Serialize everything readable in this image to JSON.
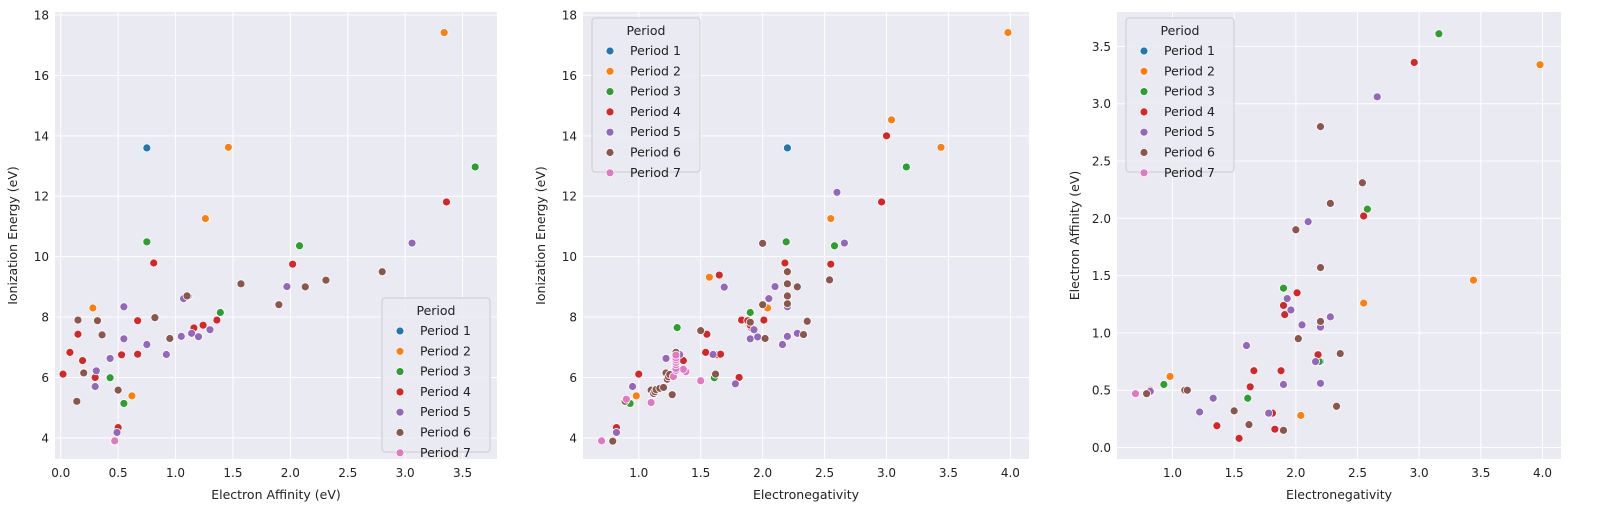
{
  "colors": {
    "background": "#ffffff",
    "axes_face": "#eaeaf2",
    "grid": "#ffffff",
    "legend_face": "#eaeaf2",
    "legend_edge": "#cccccc",
    "period_colors": [
      "#1f77b4",
      "#ff7f0e",
      "#2ca02c",
      "#d62728",
      "#9467bd",
      "#8c564b",
      "#e377c2"
    ]
  },
  "chart_data": [
    {
      "type": "scatter",
      "xlabel": "Electron Affinity (eV)",
      "ylabel": "Ionization Energy (eV)",
      "xlim": [
        -0.05,
        3.8
      ],
      "ylim": [
        3.3,
        18.1
      ],
      "xticks": [
        "0.0",
        "0.5",
        "1.0",
        "1.5",
        "2.0",
        "2.5",
        "3.0",
        "3.5"
      ],
      "yticks": [
        "4",
        "6",
        "8",
        "10",
        "12",
        "14",
        "16",
        "18"
      ],
      "grid": true,
      "legend_title": "Period",
      "legend_position": "lower right",
      "series": [
        {
          "name": "Period 1",
          "points": [
            [
              0.75,
              13.6
            ]
          ]
        },
        {
          "name": "Period 2",
          "points": [
            [
              0.62,
              5.39
            ],
            [
              0.28,
              8.3
            ],
            [
              1.26,
              11.26
            ],
            [
              1.46,
              13.62
            ],
            [
              3.34,
              17.42
            ]
          ]
        },
        {
          "name": "Period 3",
          "points": [
            [
              0.55,
              5.14
            ],
            [
              0.43,
              5.99
            ],
            [
              0.75,
              10.49
            ],
            [
              2.08,
              10.36
            ],
            [
              3.61,
              12.97
            ],
            [
              1.39,
              8.15
            ]
          ]
        },
        {
          "name": "Period 4",
          "points": [
            [
              0.5,
              4.34
            ],
            [
              0.02,
              6.11
            ],
            [
              0.19,
              6.56
            ],
            [
              0.08,
              6.83
            ],
            [
              0.53,
              6.75
            ],
            [
              0.67,
              6.77
            ],
            [
              0.15,
              7.43
            ],
            [
              1.16,
              7.64
            ],
            [
              1.24,
              7.73
            ],
            [
              0.3,
              6.0
            ],
            [
              1.36,
              7.9
            ],
            [
              0.81,
              9.79
            ],
            [
              2.02,
              9.75
            ],
            [
              3.36,
              11.81
            ],
            [
              0.67,
              7.88
            ],
            [
              0.3,
              6.0
            ]
          ]
        },
        {
          "name": "Period 5",
          "points": [
            [
              0.49,
              4.18
            ],
            [
              0.3,
              5.7
            ],
            [
              0.31,
              6.22
            ],
            [
              0.43,
              6.63
            ],
            [
              0.92,
              6.76
            ],
            [
              0.75,
              7.09
            ],
            [
              0.55,
              7.28
            ],
            [
              1.05,
              7.36
            ],
            [
              1.14,
              7.46
            ],
            [
              1.2,
              7.35
            ],
            [
              1.3,
              7.58
            ],
            [
              1.07,
              8.61
            ],
            [
              1.11,
              8.69
            ],
            [
              0.55,
              8.34
            ],
            [
              1.97,
              9.01
            ],
            [
              3.06,
              10.45
            ]
          ]
        },
        {
          "name": "Period 6",
          "points": [
            [
              0.47,
              3.89
            ],
            [
              0.14,
              5.21
            ],
            [
              0.2,
              6.15
            ],
            [
              0.5,
              5.58
            ],
            [
              0.32,
              7.88
            ],
            [
              0.36,
              7.41
            ],
            [
              0.82,
              7.98
            ],
            [
              0.95,
              7.29
            ],
            [
              1.57,
              9.1
            ],
            [
              1.9,
              8.41
            ],
            [
              2.13,
              9.0
            ],
            [
              2.31,
              9.22
            ],
            [
              2.8,
              9.5
            ],
            [
              1.1,
              8.7
            ],
            [
              0.15,
              7.9
            ]
          ]
        },
        {
          "name": "Period 7",
          "points": [
            [
              0.47,
              3.9
            ]
          ]
        }
      ]
    },
    {
      "type": "scatter",
      "xlabel": "Electronegativity",
      "ylabel": "Ionization Energy (eV)",
      "xlim": [
        0.55,
        4.15
      ],
      "ylim": [
        3.3,
        18.1
      ],
      "xticks": [
        "1.0",
        "1.5",
        "2.0",
        "2.5",
        "3.0",
        "3.5",
        "4.0"
      ],
      "yticks": [
        "4",
        "6",
        "8",
        "10",
        "12",
        "14",
        "16",
        "18"
      ],
      "grid": true,
      "legend_title": "Period",
      "legend_position": "upper left",
      "series": [
        {
          "name": "Period 1",
          "points": [
            [
              2.2,
              13.6
            ]
          ]
        },
        {
          "name": "Period 2",
          "points": [
            [
              0.98,
              5.39
            ],
            [
              1.57,
              9.32
            ],
            [
              2.04,
              8.3
            ],
            [
              2.55,
              11.26
            ],
            [
              3.04,
              14.53
            ],
            [
              3.44,
              13.62
            ],
            [
              3.98,
              17.42
            ]
          ]
        },
        {
          "name": "Period 3",
          "points": [
            [
              0.93,
              5.14
            ],
            [
              1.31,
              7.65
            ],
            [
              1.61,
              5.99
            ],
            [
              1.9,
              8.15
            ],
            [
              2.19,
              10.49
            ],
            [
              2.58,
              10.36
            ],
            [
              3.16,
              12.97
            ]
          ]
        },
        {
          "name": "Period 4",
          "points": [
            [
              0.82,
              4.34
            ],
            [
              1.0,
              6.11
            ],
            [
              1.36,
              6.56
            ],
            [
              1.54,
              6.83
            ],
            [
              1.63,
              6.75
            ],
            [
              1.66,
              6.77
            ],
            [
              1.55,
              7.43
            ],
            [
              1.83,
              7.9
            ],
            [
              1.88,
              7.88
            ],
            [
              1.91,
              7.64
            ],
            [
              1.9,
              7.73
            ],
            [
              1.65,
              9.39
            ],
            [
              1.81,
              6.0
            ],
            [
              2.01,
              7.9
            ],
            [
              2.18,
              9.79
            ],
            [
              2.55,
              9.75
            ],
            [
              2.96,
              11.81
            ],
            [
              3.0,
              14.0
            ]
          ]
        },
        {
          "name": "Period 5",
          "points": [
            [
              0.82,
              4.18
            ],
            [
              0.95,
              5.7
            ],
            [
              1.22,
              6.63
            ],
            [
              1.33,
              6.76
            ],
            [
              1.6,
              6.76
            ],
            [
              2.16,
              7.09
            ],
            [
              1.9,
              7.28
            ],
            [
              2.2,
              7.36
            ],
            [
              2.28,
              7.46
            ],
            [
              2.2,
              8.34
            ],
            [
              1.93,
              7.58
            ],
            [
              1.69,
              8.99
            ],
            [
              1.78,
              5.79
            ],
            [
              1.96,
              7.34
            ],
            [
              2.05,
              8.61
            ],
            [
              2.1,
              9.01
            ],
            [
              2.66,
              10.45
            ],
            [
              2.6,
              12.13
            ]
          ]
        },
        {
          "name": "Period 6",
          "points": [
            [
              0.79,
              3.89
            ],
            [
              0.89,
              5.21
            ],
            [
              1.1,
              5.58
            ],
            [
              1.12,
              5.47
            ],
            [
              1.13,
              5.53
            ],
            [
              1.14,
              5.6
            ],
            [
              1.17,
              5.64
            ],
            [
              1.2,
              5.67
            ],
            [
              1.22,
              6.15
            ],
            [
              1.23,
              5.94
            ],
            [
              1.24,
              6.02
            ],
            [
              1.25,
              6.1
            ],
            [
              1.27,
              5.43
            ],
            [
              1.3,
              6.83
            ],
            [
              1.5,
              7.55
            ],
            [
              2.36,
              7.86
            ],
            [
              1.9,
              7.83
            ],
            [
              2.2,
              8.44
            ],
            [
              2.28,
              9.0
            ],
            [
              2.54,
              9.23
            ],
            [
              2.0,
              10.44
            ],
            [
              1.62,
              6.11
            ],
            [
              2.33,
              7.42
            ],
            [
              2.02,
              7.29
            ],
            [
              2.0,
              8.41
            ],
            [
              2.2,
              9.5
            ],
            [
              2.2,
              9.1
            ],
            [
              2.2,
              8.7
            ]
          ]
        },
        {
          "name": "Period 7",
          "points": [
            [
              0.7,
              3.9
            ],
            [
              0.9,
              5.28
            ],
            [
              1.1,
              5.17
            ],
            [
              1.3,
              6.31
            ],
            [
              1.5,
              5.89
            ],
            [
              1.38,
              6.19
            ],
            [
              1.36,
              6.27
            ],
            [
              1.28,
              6.03
            ],
            [
              1.3,
              6.23
            ],
            [
              1.3,
              6.3
            ],
            [
              1.3,
              6.42
            ],
            [
              1.3,
              6.5
            ],
            [
              1.3,
              6.58
            ],
            [
              1.3,
              6.65
            ],
            [
              1.3,
              6.74
            ]
          ]
        }
      ]
    },
    {
      "type": "scatter",
      "xlabel": "Electronegativity",
      "ylabel": "Electron Affinity (eV)",
      "xlim": [
        0.55,
        4.15
      ],
      "ylim": [
        -0.1,
        3.8
      ],
      "xticks": [
        "1.0",
        "1.5",
        "2.0",
        "2.5",
        "3.0",
        "3.5",
        "4.0"
      ],
      "yticks": [
        "0.0",
        "0.5",
        "1.0",
        "1.5",
        "2.0",
        "2.5",
        "3.0",
        "3.5"
      ],
      "grid": true,
      "legend_title": "Period",
      "legend_position": "upper left",
      "series": [
        {
          "name": "Period 1",
          "points": [
            [
              2.2,
              0.75
            ]
          ]
        },
        {
          "name": "Period 2",
          "points": [
            [
              0.98,
              0.62
            ],
            [
              2.04,
              0.28
            ],
            [
              2.55,
              1.26
            ],
            [
              3.44,
              1.46
            ],
            [
              3.98,
              3.34
            ]
          ]
        },
        {
          "name": "Period 3",
          "points": [
            [
              0.93,
              0.55
            ],
            [
              1.61,
              0.43
            ],
            [
              1.9,
              1.39
            ],
            [
              2.19,
              0.75
            ],
            [
              2.58,
              2.08
            ],
            [
              3.16,
              3.61
            ]
          ]
        },
        {
          "name": "Period 4",
          "points": [
            [
              0.82,
              0.5
            ],
            [
              1.36,
              0.19
            ],
            [
              1.54,
              0.08
            ],
            [
              1.63,
              0.53
            ],
            [
              1.66,
              0.67
            ],
            [
              1.88,
              0.67
            ],
            [
              1.91,
              1.16
            ],
            [
              1.9,
              1.24
            ],
            [
              1.81,
              0.3
            ],
            [
              2.01,
              1.35
            ],
            [
              2.18,
              0.81
            ],
            [
              2.55,
              2.02
            ],
            [
              2.96,
              3.36
            ],
            [
              1.83,
              0.16
            ]
          ]
        },
        {
          "name": "Period 5",
          "points": [
            [
              0.82,
              0.49
            ],
            [
              1.22,
              0.31
            ],
            [
              1.33,
              0.43
            ],
            [
              1.6,
              0.89
            ],
            [
              1.9,
              0.55
            ],
            [
              2.16,
              0.75
            ],
            [
              1.93,
              1.3
            ],
            [
              1.96,
              1.2
            ],
            [
              2.05,
              1.07
            ],
            [
              2.1,
              1.97
            ],
            [
              2.2,
              1.05
            ],
            [
              2.2,
              0.56
            ],
            [
              2.28,
              1.14
            ],
            [
              2.66,
              3.06
            ],
            [
              1.78,
              0.3
            ]
          ]
        },
        {
          "name": "Period 6",
          "points": [
            [
              0.79,
              0.47
            ],
            [
              1.1,
              0.5
            ],
            [
              1.12,
              0.5
            ],
            [
              1.5,
              0.32
            ],
            [
              1.62,
              0.2
            ],
            [
              1.9,
              0.15
            ],
            [
              2.0,
              1.9
            ],
            [
              2.02,
              0.95
            ],
            [
              2.2,
              1.1
            ],
            [
              2.2,
              1.57
            ],
            [
              2.2,
              2.8
            ],
            [
              2.28,
              2.13
            ],
            [
              2.33,
              0.36
            ],
            [
              2.36,
              0.82
            ],
            [
              2.54,
              2.31
            ]
          ]
        },
        {
          "name": "Period 7",
          "points": [
            [
              0.7,
              0.47
            ]
          ]
        }
      ]
    }
  ]
}
